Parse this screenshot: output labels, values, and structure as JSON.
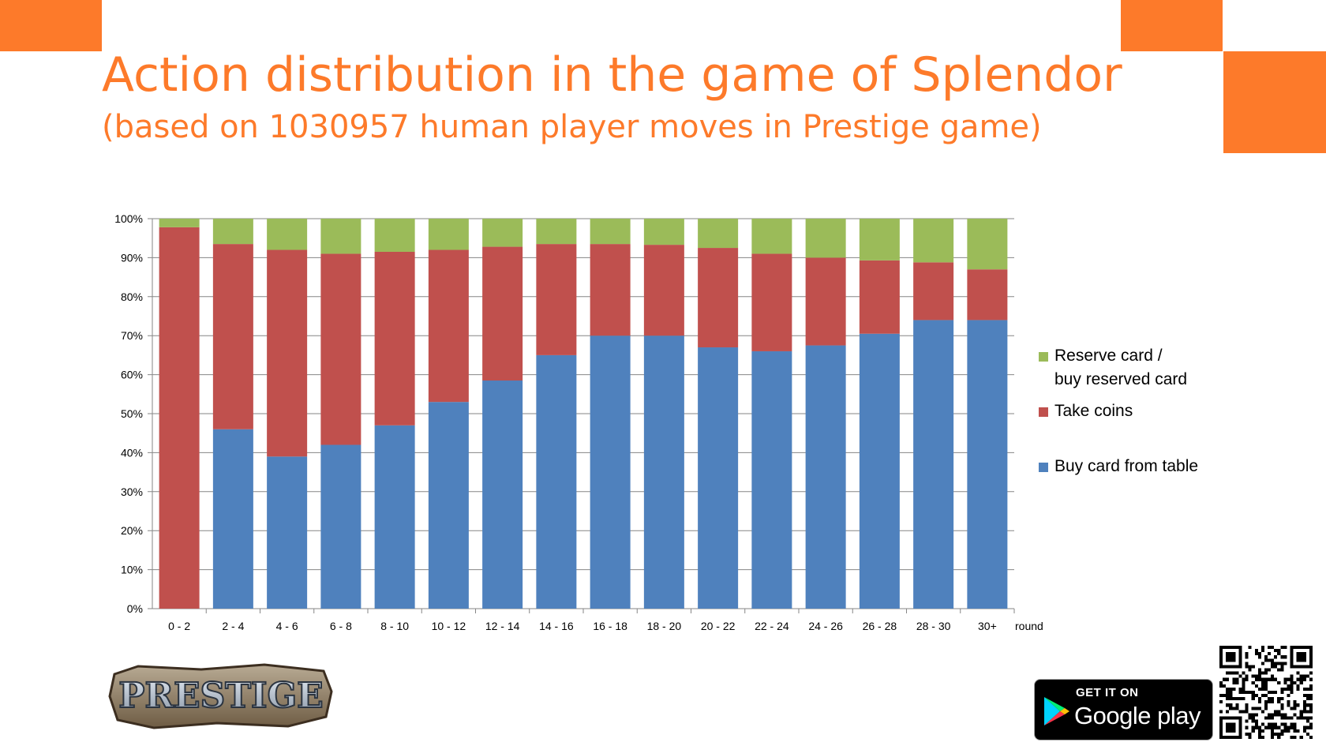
{
  "slide": {
    "title": "Action distribution in the game of Splendor",
    "subtitle": "(based on 1030957 human player moves in Prestige game)",
    "accent_color": "#fd7a2a"
  },
  "chart_data": {
    "type": "bar",
    "stacked": true,
    "normalized_percent": true,
    "categories": [
      "0 - 2",
      "2 - 4",
      "4 - 6",
      "6 - 8",
      "8 - 10",
      "10 - 12",
      "12 - 14",
      "14 - 16",
      "16 - 18",
      "18 - 20",
      "20 - 22",
      "22 - 24",
      "24 - 26",
      "26 - 28",
      "28 - 30",
      "30+"
    ],
    "xlabel": "round",
    "ylabel": "",
    "ylim": [
      0,
      100
    ],
    "y_ticks": [
      "0%",
      "10%",
      "20%",
      "30%",
      "40%",
      "50%",
      "60%",
      "70%",
      "80%",
      "90%",
      "100%"
    ],
    "grid": true,
    "legend_position": "right",
    "series": [
      {
        "name": "Buy card from table",
        "color": "#4f81bd",
        "values": [
          0,
          46,
          39,
          42,
          47,
          53,
          58.5,
          65,
          70,
          70,
          67,
          66,
          67.5,
          70.5,
          74,
          74
        ]
      },
      {
        "name": "Take coins",
        "color": "#c0504d",
        "values": [
          97.8,
          47.5,
          53,
          49,
          44.5,
          39,
          34.3,
          28.5,
          23.5,
          23.3,
          25.5,
          25,
          22.5,
          18.8,
          14.8,
          13
        ]
      },
      {
        "name": "Reserve card / buy reserved card",
        "color": "#9bbb59",
        "values": [
          2.2,
          6.5,
          8,
          9,
          8.5,
          8,
          7.2,
          6.5,
          6.5,
          6.7,
          7.5,
          9,
          10,
          10.7,
          11.2,
          13
        ]
      }
    ]
  },
  "legend": {
    "reserve_line1": "Reserve card /",
    "reserve_line2": "buy reserved card",
    "take_coins": "Take coins",
    "buy_card": "Buy card from table"
  },
  "logo": {
    "text": "PRESTIGE"
  },
  "store_badge": {
    "top_text": "GET IT ON",
    "main_text": "Google play"
  },
  "icons": [
    "google-play-icon",
    "qr-code-icon",
    "prestige-logo-icon"
  ]
}
